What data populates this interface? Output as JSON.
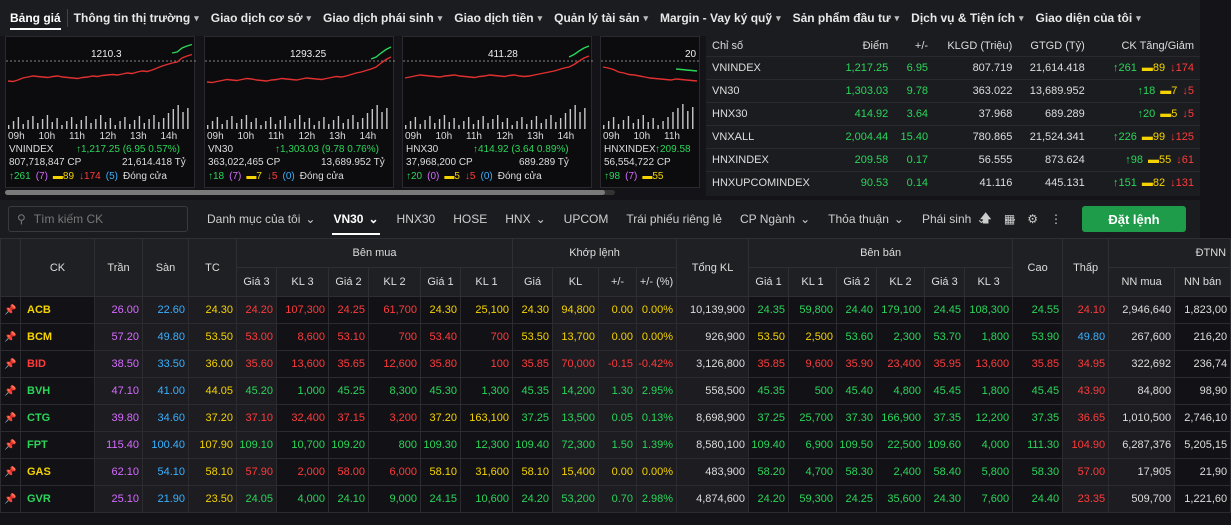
{
  "nav": [
    "Bảng giá",
    "Thông tin thị trường",
    "Giao dịch cơ sở",
    "Giao dịch phái sinh",
    "Giao dịch tiền",
    "Quản lý tài sản",
    "Margin - Vay ký quỹ",
    "Sản phẩm đầu tư",
    "Dịch vụ & Tiện ích",
    "Giao diện của tôi"
  ],
  "mini_charts": [
    {
      "name": "VNINDEX",
      "val": "↑1,217.25 (6.95 0.57%)",
      "vol": "807,718,847 CP",
      "gt": "21,614.418 Tỷ",
      "up": "↑261",
      "up_c": "(7)",
      "ref": "▬89",
      "down": "↓174",
      "down_c": "(5)",
      "status": "Đóng cửa",
      "ref_label": "1210.3",
      "series": [
        12,
        11,
        14,
        18,
        20,
        22,
        21,
        20,
        19,
        21,
        22,
        20,
        19,
        18,
        17,
        19,
        20,
        22,
        21,
        23,
        24,
        25,
        24,
        26,
        28,
        27,
        30,
        32,
        31,
        34,
        38,
        42,
        45,
        48,
        50,
        58,
        62,
        65
      ]
    },
    {
      "name": "VN30",
      "val": "↑1,303.03 (9.78 0.76%)",
      "vol": "363,022,465 CP",
      "gt": "13,689.952 Tỷ",
      "up": "↑18",
      "up_c": "(7)",
      "ref": "▬7",
      "down": "↓5",
      "down_c": "(0)",
      "status": "Đóng cửa",
      "ref_label": "1293.25",
      "series": [
        10,
        9,
        11,
        13,
        15,
        14,
        13,
        15,
        17,
        16,
        14,
        13,
        12,
        14,
        15,
        17,
        16,
        15,
        14,
        16,
        18,
        17,
        16,
        15,
        17,
        19,
        21,
        20,
        22,
        25,
        28,
        30,
        33,
        36,
        40,
        48,
        55,
        60
      ]
    },
    {
      "name": "HNX30",
      "val": "↑414.92 (3.64 0.89%)",
      "vol": "37,968,200 CP",
      "gt": "689.289 Tỷ",
      "up": "↑20",
      "up_c": "(0)",
      "ref": "▬5",
      "down": "↓5",
      "down_c": "(0)",
      "status": "Đóng cửa",
      "ref_label": "411.28",
      "series": [
        18,
        20,
        22,
        24,
        23,
        22,
        21,
        20,
        22,
        23,
        24,
        22,
        21,
        20,
        19,
        21,
        22,
        24,
        23,
        22,
        21,
        23,
        24,
        22,
        21,
        22,
        24,
        26,
        28,
        30,
        32,
        35,
        38,
        40,
        45,
        52,
        58,
        62
      ]
    },
    {
      "name": "HNXINDEX",
      "val": "↑209.58",
      "vol": "56,554,722 CP",
      "gt": "",
      "up": "↑98",
      "up_c": "(7)",
      "ref": "▬55",
      "down": "",
      "down_c": "",
      "status": "",
      "ref_label": "20",
      "series": [
        40,
        38,
        35,
        30,
        28,
        25,
        24,
        22,
        20,
        18,
        17,
        16,
        15,
        14,
        16,
        15,
        14,
        13,
        12
      ]
    }
  ],
  "times": [
    "09h",
    "10h",
    "11h",
    "12h",
    "13h",
    "14h",
    "15h"
  ],
  "index_header": [
    "Chỉ số",
    "Điểm",
    "+/-",
    "KLGD (Triệu)",
    "GTGD (Tỷ)",
    "CK Tăng/Giảm"
  ],
  "index_rows": [
    {
      "name": "VNINDEX",
      "pt": "1,217.25",
      "chg": "6.95",
      "vol": "807.719",
      "val": "21,614.418",
      "up": "↑261",
      "ref": "▬89",
      "dn": "↓174"
    },
    {
      "name": "VN30",
      "pt": "1,303.03",
      "chg": "9.78",
      "vol": "363.022",
      "val": "13,689.952",
      "up": "↑18",
      "ref": "▬7",
      "dn": "↓5"
    },
    {
      "name": "HNX30",
      "pt": "414.92",
      "chg": "3.64",
      "vol": "37.968",
      "val": "689.289",
      "up": "↑20",
      "ref": "▬5",
      "dn": "↓5"
    },
    {
      "name": "VNXALL",
      "pt": "2,004.44",
      "chg": "15.40",
      "vol": "780.865",
      "val": "21,524.341",
      "up": "↑226",
      "ref": "▬99",
      "dn": "↓125"
    },
    {
      "name": "HNXINDEX",
      "pt": "209.58",
      "chg": "0.17",
      "vol": "56.555",
      "val": "873.624",
      "up": "↑98",
      "ref": "▬55",
      "dn": "↓61"
    },
    {
      "name": "HNXUPCOMINDEX",
      "pt": "90.53",
      "chg": "0.14",
      "vol": "41.116",
      "val": "445.131",
      "up": "↑151",
      "ref": "▬82",
      "dn": "↓131"
    }
  ],
  "toolbar": {
    "search_placeholder": "Tìm kiếm CK",
    "tabs": [
      "Danh mục của tôi",
      "VN30",
      "HNX30",
      "HOSE",
      "HNX",
      "UPCOM",
      "Trái phiếu riêng lẻ",
      "CP Ngành",
      "Thỏa thuận",
      "Phái sinh",
      "···"
    ],
    "order": "Đặt lệnh"
  },
  "groups": {
    "buy": "Bên mua",
    "match": "Khớp lệnh",
    "sell": "Bên bán",
    "foreign": "ĐTNN"
  },
  "headers": {
    "ck": "CK",
    "tran": "Trần",
    "san": "Sàn",
    "tc": "TC",
    "g3": "Giá 3",
    "kl3": "KL 3",
    "g2": "Giá 2",
    "kl2": "KL 2",
    "g1": "Giá 1",
    "kl1": "KL 1",
    "gia": "Giá",
    "kl": "KL",
    "pm": "+/-",
    "pct": "+/- (%)",
    "tkl": "Tổng KL",
    "cao": "Cao",
    "thap": "Thấp",
    "nnmua": "NN mua",
    "nnban": "NN bán"
  },
  "rows": [
    [
      "ACB",
      "26.00",
      "22.60",
      "24.30",
      "24.20",
      "107,300",
      "24.25",
      "61,700",
      "24.30",
      "25,100",
      "24.30",
      "94,800",
      "0.00",
      "0.00%",
      "10,139,900",
      "24.35",
      "59,800",
      "24.40",
      "179,100",
      "24.45",
      "108,300",
      "24.55",
      "24.10",
      "2,946,640",
      "1,823,00"
    ],
    [
      "BCM",
      "57.20",
      "49.80",
      "53.50",
      "53.00",
      "8,600",
      "53.10",
      "700",
      "53.40",
      "700",
      "53.50",
      "13,700",
      "0.00",
      "0.00%",
      "926,900",
      "53.50",
      "2,500",
      "53.60",
      "2,300",
      "53.70",
      "1,800",
      "53.90",
      "49.80",
      "267,600",
      "216,20"
    ],
    [
      "BID",
      "38.50",
      "33.50",
      "36.00",
      "35.60",
      "13,600",
      "35.65",
      "12,600",
      "35.80",
      "100",
      "35.85",
      "70,000",
      "-0.15",
      "-0.42%",
      "3,126,800",
      "35.85",
      "9,600",
      "35.90",
      "23,400",
      "35.95",
      "13,600",
      "35.85",
      "34.95",
      "322,692",
      "236,74"
    ],
    [
      "BVH",
      "47.10",
      "41.00",
      "44.05",
      "45.20",
      "1,000",
      "45.25",
      "8,300",
      "45.30",
      "1,300",
      "45.35",
      "14,200",
      "1.30",
      "2.95%",
      "558,500",
      "45.35",
      "500",
      "45.40",
      "4,800",
      "45.45",
      "1,800",
      "45.45",
      "43.90",
      "84,800",
      "98,90"
    ],
    [
      "CTG",
      "39.80",
      "34.60",
      "37.20",
      "37.10",
      "32,400",
      "37.15",
      "3,200",
      "37.20",
      "163,100",
      "37.25",
      "13,500",
      "0.05",
      "0.13%",
      "8,698,900",
      "37.25",
      "25,700",
      "37.30",
      "166,900",
      "37.35",
      "12,200",
      "37.35",
      "36.65",
      "1,010,500",
      "2,746,10"
    ],
    [
      "FPT",
      "115.40",
      "100.40",
      "107.90",
      "109.10",
      "10,700",
      "109.20",
      "800",
      "109.30",
      "12,300",
      "109.40",
      "72,300",
      "1.50",
      "1.39%",
      "8,580,100",
      "109.40",
      "6,900",
      "109.50",
      "22,500",
      "109.60",
      "4,000",
      "111.30",
      "104.90",
      "6,287,376",
      "5,205,15"
    ],
    [
      "GAS",
      "62.10",
      "54.10",
      "58.10",
      "57.90",
      "2,000",
      "58.00",
      "6,000",
      "58.10",
      "31,600",
      "58.10",
      "15,400",
      "0.00",
      "0.00%",
      "483,900",
      "58.20",
      "4,700",
      "58.30",
      "2,400",
      "58.40",
      "5,800",
      "58.30",
      "57.00",
      "17,905",
      "21,90"
    ],
    [
      "GVR",
      "25.10",
      "21.90",
      "23.50",
      "24.05",
      "4,000",
      "24.10",
      "9,000",
      "24.15",
      "10,600",
      "24.20",
      "53,200",
      "0.70",
      "2.98%",
      "4,874,600",
      "24.20",
      "59,300",
      "24.25",
      "35,600",
      "24.30",
      "7,600",
      "24.40",
      "23.35",
      "509,700",
      "1,221,60"
    ]
  ]
}
